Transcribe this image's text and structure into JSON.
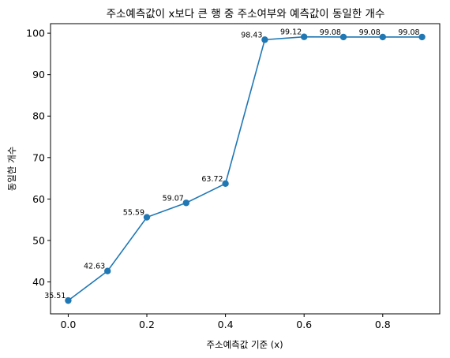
{
  "chart_data": {
    "type": "line",
    "title": "주소예측값이 x보다 큰 행 중 주소여부와 예측값이 동일한 개수",
    "xlabel": "주소예측값 기준 (x)",
    "ylabel": "동일한 개수",
    "x": [
      0.0,
      0.1,
      0.2,
      0.3,
      0.4,
      0.5,
      0.6,
      0.7,
      0.8,
      0.9
    ],
    "series": [
      {
        "values": [
          35.51,
          42.63,
          55.59,
          59.07,
          63.72,
          98.43,
          99.12,
          99.08,
          99.08,
          99.08
        ],
        "labels": [
          "35.51",
          "42.63",
          "55.59",
          "59.07",
          "63.72",
          "98.43",
          "99.12",
          "99.08",
          "99.08",
          "99.08"
        ],
        "color": "#1f77b4"
      }
    ],
    "xlim": [
      -0.045,
      0.945
    ],
    "ylim": [
      32.3,
      102.3
    ],
    "xticks": [
      0.0,
      0.2,
      0.4,
      0.6,
      0.8
    ],
    "xtick_labels": [
      "0.0",
      "0.2",
      "0.4",
      "0.6",
      "0.8"
    ],
    "yticks": [
      40,
      50,
      60,
      70,
      80,
      90,
      100
    ],
    "ytick_labels": [
      "40",
      "50",
      "60",
      "70",
      "80",
      "90",
      "100"
    ],
    "grid": false,
    "legend": "none"
  }
}
